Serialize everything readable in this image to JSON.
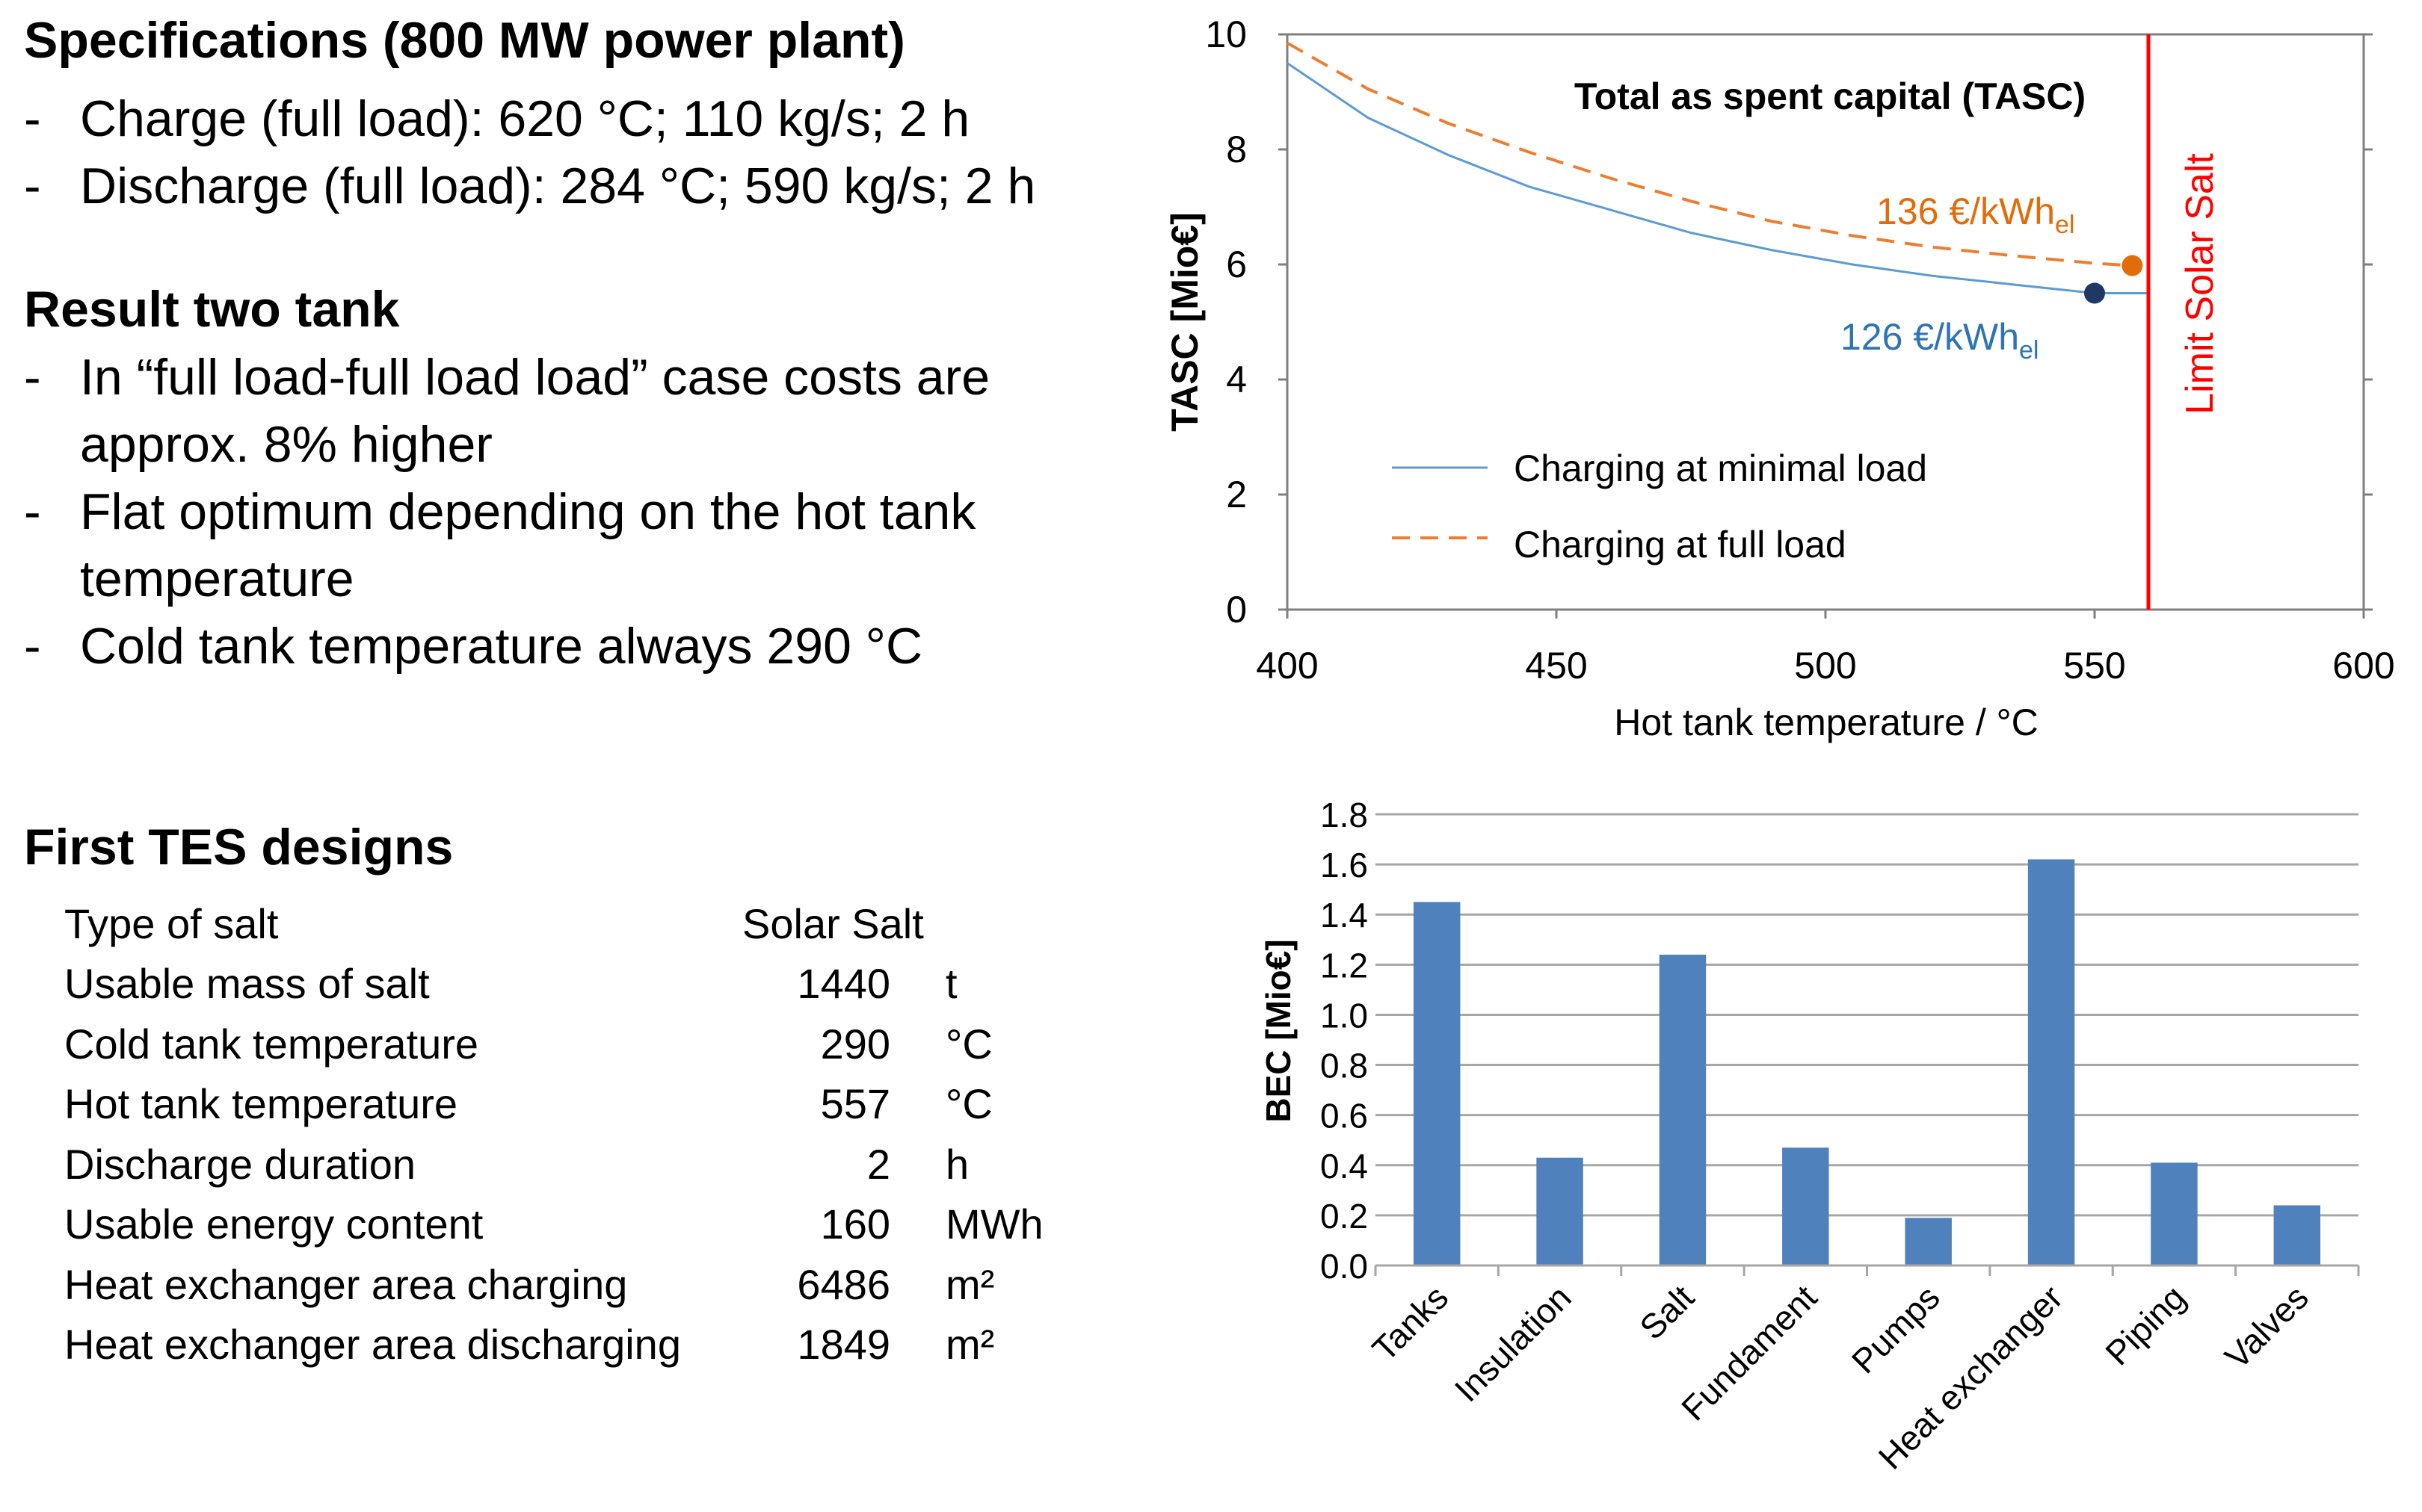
{
  "specs": {
    "title": "Specifications (800 MW power plant)",
    "items": [
      "Charge (full load): 620 °C; 110 kg/s; 2 h",
      "Discharge (full load): 284 °C; 590 kg/s; 2 h"
    ]
  },
  "result": {
    "title": "Result two tank",
    "items": [
      "In “full load-full load load” case costs are approx. 8% higher",
      "Flat optimum depending on the hot tank temperature",
      "Cold tank temperature always 290 °C"
    ]
  },
  "bullet_dash": "-",
  "tes": {
    "title": "First TES designs",
    "rows": [
      {
        "label": "Type of salt",
        "value": "Solar Salt",
        "unit": ""
      },
      {
        "label": "Usable mass of salt",
        "value": "1440",
        "unit": "t"
      },
      {
        "label": "Cold tank temperature",
        "value": "290",
        "unit": "°C"
      },
      {
        "label": "Hot tank temperature",
        "value": "557",
        "unit": "°C"
      },
      {
        "label": "Discharge duration",
        "value": "2",
        "unit": "h"
      },
      {
        "label": "Usable energy content",
        "value": "160",
        "unit": "MWh"
      },
      {
        "label": "Heat exchanger area charging",
        "value": "6486",
        "unit": "m²"
      },
      {
        "label": "Heat exchanger area discharging",
        "value": "1849",
        "unit": "m²"
      }
    ]
  },
  "chart_data": [
    {
      "type": "line",
      "title": "Total as spent capital (TASC)",
      "xlabel": "Hot tank temperature / °C",
      "ylabel": "TASC [Mio€]",
      "xlim": [
        400,
        600
      ],
      "ylim": [
        0,
        10
      ],
      "x_ticks": [
        400,
        450,
        500,
        550,
        600
      ],
      "y_ticks": [
        0,
        2,
        4,
        6,
        8,
        10
      ],
      "grid": false,
      "legend_position": "bottom-left",
      "series": [
        {
          "name": "Charging at minimal load",
          "color": "#5b9bd5",
          "dash": "solid",
          "x": [
            400,
            415,
            430,
            445,
            460,
            475,
            490,
            505,
            520,
            535,
            550,
            560
          ],
          "y": [
            9.5,
            8.55,
            7.9,
            7.35,
            6.95,
            6.55,
            6.25,
            6.0,
            5.8,
            5.65,
            5.5,
            5.5
          ]
        },
        {
          "name": "Charging at full load",
          "color": "#ed7d31",
          "dash": "dashed",
          "x": [
            400,
            415,
            430,
            445,
            460,
            475,
            490,
            505,
            520,
            535,
            550,
            557
          ],
          "y": [
            9.85,
            9.05,
            8.45,
            7.95,
            7.5,
            7.1,
            6.75,
            6.5,
            6.3,
            6.15,
            6.02,
            5.98
          ]
        }
      ],
      "markers": [
        {
          "x": 557,
          "y": 5.98,
          "color": "#e36c0a",
          "label_main": "136 €/kWh",
          "label_sub": "el",
          "label_color": "#e36c0a"
        },
        {
          "x": 550,
          "y": 5.5,
          "color": "#1f3864",
          "label_main": "126 €/kWh",
          "label_sub": "el",
          "label_color": "#2e74b5"
        }
      ],
      "vline": {
        "x": 560,
        "color": "#ff0000",
        "label": "Limit Solar Salt"
      }
    },
    {
      "type": "bar",
      "ylabel": "BEC [Mio€]",
      "ylim": [
        0,
        1.8
      ],
      "y_ticks": [
        "0.0",
        "0.2",
        "0.4",
        "0.6",
        "0.8",
        "1.0",
        "1.2",
        "1.4",
        "1.6",
        "1.8"
      ],
      "grid": true,
      "bar_color": "#4f81bd",
      "categories": [
        "Tanks",
        "Insulation",
        "Salt",
        "Fundament",
        "Pumps",
        "Heat exchanger",
        "Piping",
        "Valves"
      ],
      "values": [
        1.45,
        0.43,
        1.24,
        0.47,
        0.19,
        1.62,
        0.41,
        0.24
      ]
    }
  ]
}
